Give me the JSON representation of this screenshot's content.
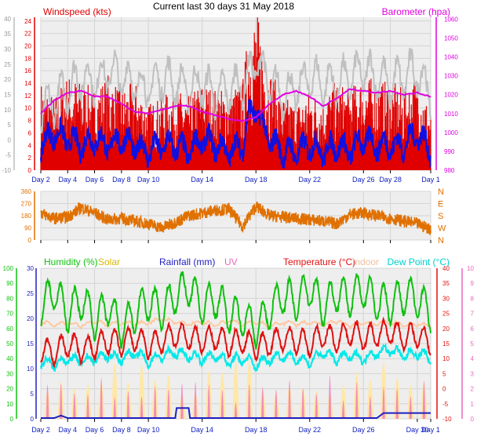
{
  "header": {
    "title": "Current last 30 days 31 May 2018"
  },
  "colors": {
    "wind": "#e00000",
    "avgwind": "#1010e0",
    "gust": "#c0c0c0",
    "baro": "#e000e0",
    "winddir": "#e07000",
    "humidity": "#10c010",
    "solar": "#f4d000",
    "rain": "#2020c0",
    "uv": "#ee66bb",
    "temp": "#e01010",
    "indoor": "#ffc8a0",
    "dew": "#00e8e8",
    "solarfill": "#ffe7a8",
    "plotbg": "#eeeeee"
  },
  "x_ticks": {
    "top": [
      "Day 2",
      "Day 4",
      "Day 6",
      "Day 8",
      "Day 10",
      "Day 14",
      "Day 18",
      "Day 22",
      "Day 26",
      "Day 28",
      "Day 1"
    ],
    "bottom": [
      "Day 2",
      "Day 4",
      "Day 6",
      "Day 8",
      "Day 10",
      "Day 14",
      "Day 18",
      "Day 22",
      "Day 26",
      "Day 30",
      "Day 1"
    ]
  },
  "chart_data": [
    {
      "type": "line",
      "title": "Current last 30 days 31 May 2018",
      "x_range_days": [
        2,
        31
      ],
      "y_left": {
        "label": "Windspeed (kts)",
        "ticks": [
          0,
          2,
          4,
          6,
          8,
          10,
          12,
          14,
          16,
          18,
          20,
          22,
          24
        ],
        "ylim": [
          0,
          24.6
        ]
      },
      "y_left_outer": {
        "ticks": [
          -10,
          -5,
          0,
          5,
          10,
          15,
          20,
          25,
          30,
          35,
          40
        ],
        "ylim": [
          -10,
          40.5
        ]
      },
      "y_right": {
        "label": "Barometer (hpa)",
        "ticks": [
          980,
          990,
          1000,
          1010,
          1020,
          1030,
          1040,
          1050,
          1060
        ],
        "ylim": [
          980,
          1061
        ]
      },
      "series": [
        {
          "name": "Windspeed",
          "color": "#e00000",
          "x": [
            2,
            3,
            4,
            5,
            6,
            7,
            8,
            9,
            10,
            11,
            12,
            13,
            14,
            15,
            16,
            17,
            17.5,
            18,
            18.5,
            19,
            20,
            21,
            22,
            23,
            24,
            25,
            26,
            27,
            28,
            29,
            30,
            31
          ],
          "values": [
            12,
            10,
            13,
            12,
            11,
            13,
            11,
            12,
            9,
            10,
            11,
            10,
            12,
            11,
            11,
            12,
            20,
            22,
            18,
            14,
            10,
            9,
            11,
            10,
            12,
            11,
            13,
            12,
            12,
            11,
            13,
            8
          ]
        },
        {
          "name": "Average wind",
          "color": "#1010e0",
          "x": [
            2,
            3,
            4,
            5,
            6,
            7,
            8,
            9,
            10,
            11,
            12,
            13,
            14,
            15,
            16,
            17,
            17.5,
            18,
            18.5,
            19,
            20,
            21,
            22,
            23,
            24,
            25,
            26,
            27,
            28,
            29,
            30,
            31
          ],
          "values": [
            4,
            6,
            5,
            4,
            5,
            4,
            5,
            4,
            3,
            4,
            4,
            3,
            5,
            4,
            3,
            4,
            9,
            10,
            7,
            5,
            3,
            3,
            4,
            3,
            4,
            3,
            5,
            4,
            4,
            4,
            6,
            3
          ]
        },
        {
          "name": "Gust",
          "color": "#c0c0c0",
          "x": [
            2,
            3,
            4,
            5,
            6,
            7,
            8,
            9,
            10,
            11,
            12,
            13,
            14,
            15,
            16,
            17,
            17.5,
            18,
            18.5,
            19,
            20,
            21,
            22,
            23,
            24,
            25,
            26,
            27,
            28,
            29,
            30,
            31
          ],
          "values": [
            9,
            11,
            13,
            15,
            14,
            16,
            15,
            14,
            13,
            15,
            14,
            13,
            14,
            12,
            13,
            14,
            15,
            18,
            16,
            14,
            12,
            13,
            15,
            14,
            14,
            15,
            16,
            15,
            14,
            15,
            16,
            12
          ]
        },
        {
          "name": "Barometer",
          "color": "#e000e0",
          "axis": "right",
          "x": [
            2,
            3,
            4,
            5,
            6,
            7,
            8,
            9,
            10,
            11,
            12,
            13,
            14,
            15,
            16,
            17,
            18,
            19,
            20,
            21,
            22,
            23,
            24,
            25,
            26,
            27,
            28,
            29,
            30,
            31
          ],
          "values": [
            1010,
            1017,
            1021,
            1022,
            1019,
            1019,
            1015,
            1011,
            1010,
            1012,
            1014,
            1014,
            1011,
            1009,
            1007,
            1006,
            1008,
            1015,
            1020,
            1022,
            1019,
            1014,
            1018,
            1023,
            1022,
            1021,
            1022,
            1020,
            1021,
            1019
          ]
        }
      ]
    },
    {
      "type": "line",
      "x_range_days": [
        2,
        31
      ],
      "y_left": {
        "ticks": [
          0,
          90,
          180,
          270,
          360
        ],
        "ylim": [
          0,
          360
        ]
      },
      "y_right": {
        "ticks": [
          "N",
          "W",
          "S",
          "E",
          "N"
        ]
      },
      "series": [
        {
          "name": "Wind direction",
          "color": "#e07000",
          "x": [
            2,
            3,
            4,
            5,
            6,
            7,
            8,
            9,
            10,
            11,
            12,
            13,
            14,
            15,
            16,
            17,
            18,
            19,
            20,
            21,
            22,
            23,
            24,
            25,
            26,
            27,
            28,
            29,
            30,
            31
          ],
          "values": [
            200,
            160,
            170,
            240,
            200,
            150,
            160,
            140,
            120,
            90,
            130,
            180,
            200,
            220,
            230,
            100,
            250,
            180,
            170,
            160,
            150,
            140,
            120,
            190,
            200,
            180,
            160,
            140,
            120,
            80
          ]
        }
      ]
    },
    {
      "type": "line",
      "x_range_days": [
        2,
        31
      ],
      "y_axes": {
        "humidity": {
          "ticks": [
            0,
            10,
            20,
            30,
            40,
            50,
            60,
            70,
            80,
            90,
            100
          ],
          "ylim": [
            0,
            100
          ]
        },
        "rainfall": {
          "ticks": [
            0,
            5,
            10,
            15,
            20,
            25,
            30
          ],
          "ylim": [
            0,
            30
          ]
        },
        "temperature": {
          "ticks": [
            -10,
            -5,
            0,
            5,
            10,
            15,
            20,
            25,
            30,
            35,
            40
          ],
          "ylim": [
            -10,
            40
          ]
        },
        "uv": {
          "ticks": [
            0,
            1,
            2,
            3,
            4,
            5,
            6,
            7,
            8,
            9,
            10
          ],
          "ylim": [
            0,
            10
          ]
        }
      },
      "legend": [
        "Humidity (%)",
        "Solar",
        "Rainfall (mm)",
        "UV",
        "Temperature (°C)",
        "Indoor",
        "Dew Point (°C)"
      ],
      "series": [
        {
          "name": "Humidity (%)",
          "color": "#10c010",
          "axis": "humidity",
          "x": [
            2,
            3,
            4,
            5,
            6,
            7,
            8,
            9,
            10,
            11,
            12,
            13,
            14,
            15,
            16,
            17,
            18,
            19,
            20,
            21,
            22,
            23,
            24,
            25,
            26,
            27,
            28,
            29,
            30,
            31
          ],
          "values": [
            75,
            85,
            70,
            80,
            65,
            75,
            60,
            70,
            78,
            72,
            82,
            88,
            75,
            80,
            70,
            68,
            60,
            72,
            82,
            78,
            88,
            74,
            84,
            80,
            86,
            78,
            76,
            82,
            80,
            70
          ]
        },
        {
          "name": "Indoor",
          "color": "#ffc8a0",
          "axis": "temperature",
          "x": [
            2,
            3,
            4,
            5,
            6,
            7,
            8,
            9,
            10,
            11,
            12,
            13,
            14,
            15,
            16,
            17,
            18,
            19,
            20,
            21,
            22,
            23,
            24,
            25,
            26,
            27,
            28,
            29,
            30,
            31
          ],
          "values": [
            22,
            21.5,
            22,
            21,
            22.5,
            21,
            22,
            21.5,
            22,
            23,
            22,
            21.5,
            22,
            21,
            22.5,
            21.5,
            22,
            21,
            22,
            21.5,
            22,
            21,
            22.5,
            21,
            22,
            21.5,
            22,
            21,
            21.5,
            21
          ]
        },
        {
          "name": "Temperature (°C)",
          "color": "#e01010",
          "axis": "temperature",
          "x": [
            2,
            3,
            4,
            5,
            6,
            7,
            8,
            9,
            10,
            11,
            12,
            13,
            14,
            15,
            16,
            17,
            18,
            19,
            20,
            21,
            22,
            23,
            24,
            25,
            26,
            27,
            28,
            29,
            30,
            31
          ],
          "values": [
            13,
            12,
            15,
            13,
            14,
            16,
            15,
            17,
            14,
            16,
            18,
            17,
            16,
            17,
            15,
            16,
            14,
            15,
            17,
            16,
            15,
            18,
            16,
            19,
            17,
            18,
            19,
            17,
            18,
            15
          ]
        },
        {
          "name": "Dew Point (°C)",
          "color": "#00e8e8",
          "axis": "temperature",
          "x": [
            2,
            3,
            4,
            5,
            6,
            7,
            8,
            9,
            10,
            11,
            12,
            13,
            14,
            15,
            16,
            17,
            18,
            19,
            20,
            21,
            22,
            23,
            24,
            25,
            26,
            27,
            28,
            29,
            30,
            31
          ],
          "values": [
            9,
            8,
            10,
            9,
            10,
            11,
            10,
            12,
            9,
            11,
            12,
            11,
            10,
            11,
            9,
            10,
            8,
            10,
            11,
            10,
            9,
            12,
            10,
            11,
            10,
            12,
            13,
            11,
            12,
            10
          ]
        },
        {
          "name": "Rainfall (mm)",
          "color": "#2020c0",
          "axis": "rainfall",
          "x": [
            2,
            3,
            3.5,
            4,
            10,
            11,
            12,
            12.1,
            13,
            13.1,
            25,
            26,
            27,
            27.5,
            28,
            31
          ],
          "values": [
            0,
            0,
            0.5,
            0,
            0,
            0,
            0,
            2,
            2,
            0,
            0,
            0,
            0,
            1,
            1,
            1
          ]
        }
      ]
    }
  ]
}
